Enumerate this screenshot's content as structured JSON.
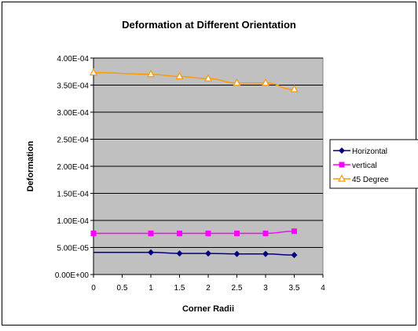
{
  "chart_data": {
    "type": "line",
    "title": "Deformation at Different Orientation",
    "xlabel": "Corner Radii",
    "ylabel": "Deformation",
    "xlim": [
      0,
      4
    ],
    "ylim": [
      0,
      0.0004
    ],
    "x_ticks": [
      "0",
      "0.5",
      "1",
      "1.5",
      "2",
      "2.5",
      "3",
      "3.5",
      "4"
    ],
    "y_ticks": [
      "0.00E+00",
      "5.00E-05",
      "1.00E-04",
      "1.50E-04",
      "2.00E-04",
      "2.50E-04",
      "3.00E-04",
      "3.50E-04",
      "4.00E-04"
    ],
    "x": [
      0,
      1,
      1.5,
      2,
      2.5,
      3,
      3.5
    ],
    "series": [
      {
        "name": "Horizontal",
        "color": "#000080",
        "marker": "diamond",
        "values": [
          4.1e-05,
          4.1e-05,
          3.9e-05,
          3.9e-05,
          3.8e-05,
          3.8e-05,
          3.6e-05
        ]
      },
      {
        "name": "vertical",
        "color": "#ff00ff",
        "marker": "square",
        "values": [
          7.6e-05,
          7.6e-05,
          7.6e-05,
          7.6e-05,
          7.6e-05,
          7.6e-05,
          8e-05
        ]
      },
      {
        "name": "45 Degree",
        "color": "#ff9900",
        "marker": "triangle",
        "values": [
          0.000373,
          0.00037,
          0.000366,
          0.000362,
          0.000354,
          0.000354,
          0.000342
        ]
      }
    ],
    "grid": true,
    "plot_background": "#c0c0c0",
    "legend_position": "right"
  }
}
